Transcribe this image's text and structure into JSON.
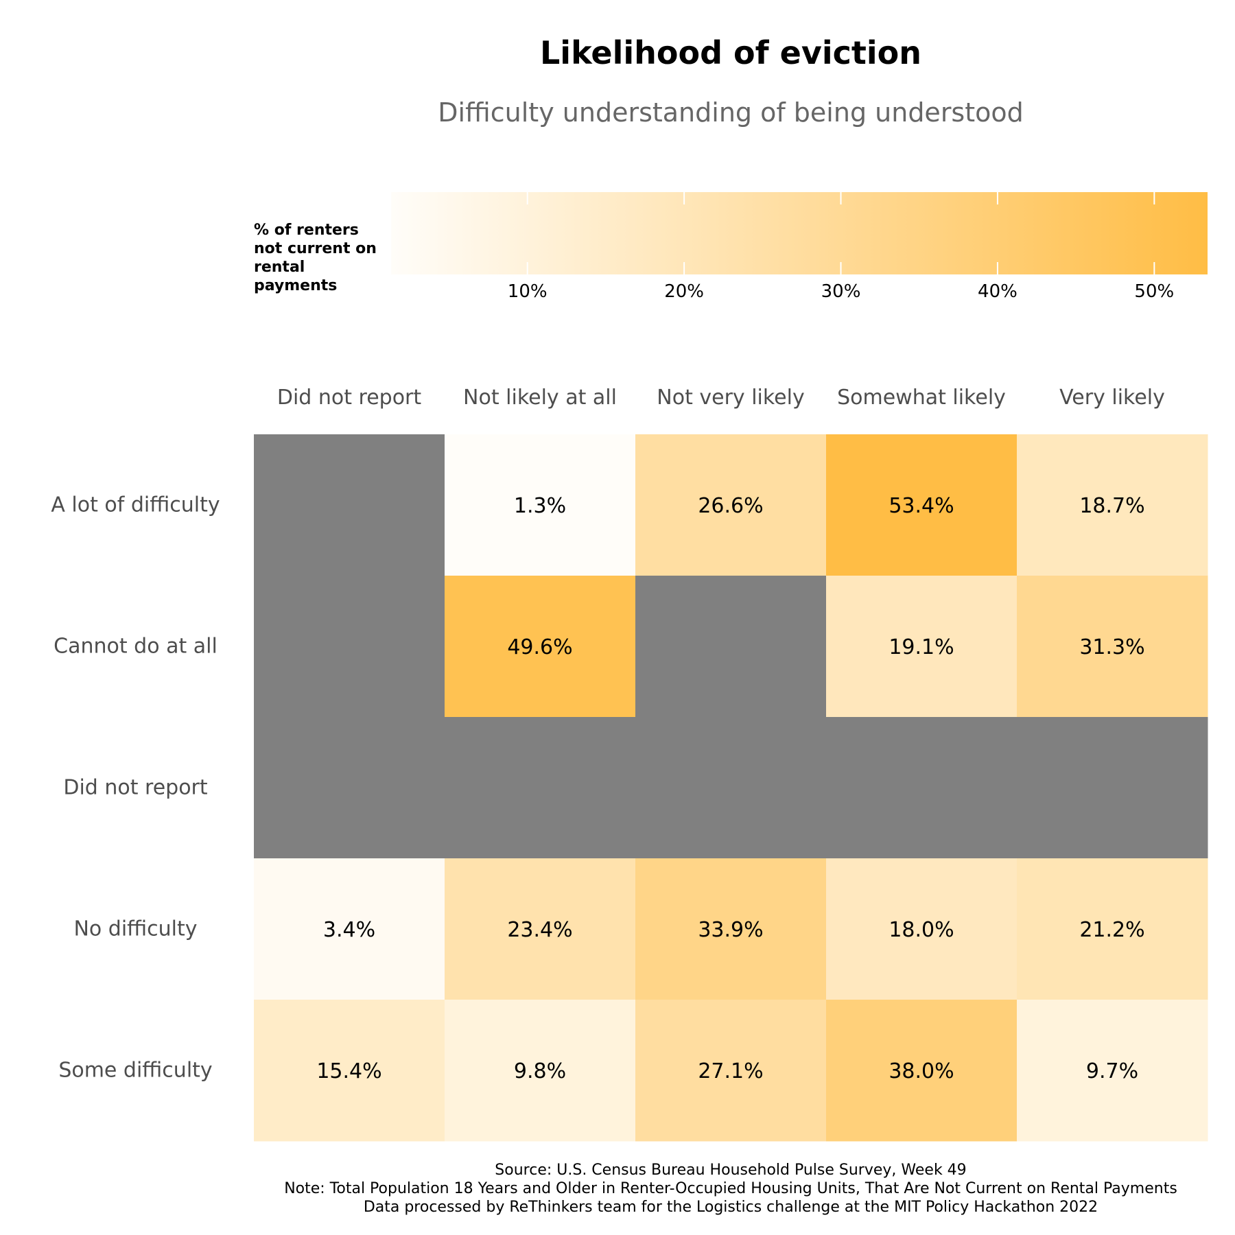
{
  "chart_data": {
    "type": "heatmap",
    "title": "Likelihood of eviction",
    "subtitle": "Difficulty understanding of being understood",
    "legend": {
      "title": "% of renters\nnot current on\nrental payments",
      "ticks": [
        {
          "value": 10,
          "label": "10%"
        },
        {
          "value": 20,
          "label": "20%"
        },
        {
          "value": 30,
          "label": "30%"
        },
        {
          "value": 40,
          "label": "40%"
        },
        {
          "value": 50,
          "label": "50%"
        }
      ],
      "range": [
        1.3,
        53.4
      ],
      "low_color": "#FFFDF9",
      "high_color": "#FFBD45",
      "placement": "top"
    },
    "columns": [
      "Did not report",
      "Not likely at all",
      "Not very likely",
      "Somewhat likely",
      "Very likely"
    ],
    "rows": [
      "A lot of difficulty",
      "Cannot do at all",
      "Did not report",
      "No difficulty",
      "Some difficulty"
    ],
    "values": [
      [
        null,
        1.3,
        26.6,
        53.4,
        18.7
      ],
      [
        null,
        49.6,
        null,
        19.1,
        31.3
      ],
      [
        null,
        null,
        null,
        null,
        null
      ],
      [
        3.4,
        23.4,
        33.9,
        18.0,
        21.2
      ],
      [
        15.4,
        9.8,
        27.1,
        38.0,
        9.7
      ]
    ],
    "labels": [
      [
        "",
        "1.3%",
        "26.6%",
        "53.4%",
        "18.7%"
      ],
      [
        "",
        "49.6%",
        "",
        "19.1%",
        "31.3%"
      ],
      [
        "",
        "",
        "",
        "",
        ""
      ],
      [
        "3.4%",
        "23.4%",
        "33.9%",
        "18.0%",
        "21.2%"
      ],
      [
        "15.4%",
        "9.8%",
        "27.1%",
        "38.0%",
        "9.7%"
      ]
    ],
    "na_color": "#808080"
  },
  "caption": [
    "Source: U.S. Census Bureau Household Pulse Survey, Week 49",
    "Note: Total Population 18 Years and Older in Renter-Occupied Housing Units, That Are Not Current on Rental Payments",
    "Data processed by ReThinkers team for the Logistics challenge at the MIT Policy Hackathon 2022"
  ]
}
